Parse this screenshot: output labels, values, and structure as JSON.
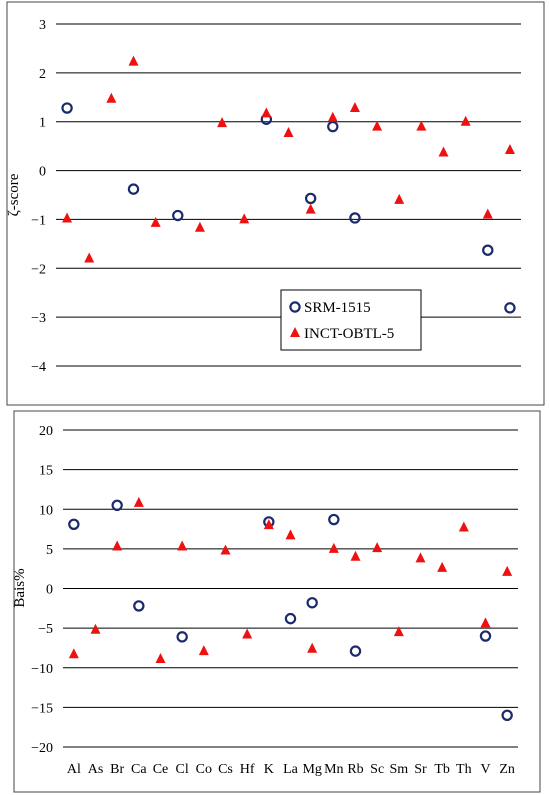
{
  "chart_data": [
    {
      "type": "scatter",
      "title": "",
      "xlabel": "",
      "ylabel": "ζ-score",
      "ylim": [
        -4,
        3
      ],
      "yticks": [
        3,
        2,
        1,
        0,
        -1,
        -2,
        -3,
        -4
      ],
      "grid": true,
      "legend": "bottom-right",
      "categories": [
        "Al",
        "As",
        "Br",
        "Ca",
        "Ce",
        "Cl",
        "Co",
        "Cs",
        "Hf",
        "K",
        "La",
        "Mg",
        "Mn",
        "Rb",
        "Sc",
        "Sm",
        "Sr",
        "Tb",
        "Th",
        "V",
        "Zn"
      ],
      "series": [
        {
          "name": "SRM-1515",
          "marker": "circle",
          "color": "#1a2a6c",
          "values": [
            1.28,
            null,
            null,
            -0.38,
            null,
            -0.92,
            null,
            null,
            null,
            1.05,
            null,
            -0.57,
            0.9,
            -0.97,
            null,
            null,
            null,
            null,
            null,
            -1.63,
            -2.81
          ]
        },
        {
          "name": "INCT-OBTL-5",
          "marker": "triangle",
          "color": "#ee1111",
          "values": [
            -0.98,
            -1.8,
            1.47,
            2.23,
            -1.07,
            null,
            -1.17,
            0.97,
            -1.0,
            1.17,
            0.77,
            -0.8,
            1.08,
            1.28,
            0.9,
            -0.6,
            0.9,
            0.37,
            1.0,
            -0.9,
            0.42
          ]
        }
      ]
    },
    {
      "type": "scatter",
      "title": "",
      "xlabel": "",
      "ylabel": "Bais%",
      "ylim": [
        -20,
        20
      ],
      "yticks": [
        20,
        15,
        10,
        5,
        0,
        -5,
        -10,
        -15,
        -20
      ],
      "grid": true,
      "categories": [
        "Al",
        "As",
        "Br",
        "Ca",
        "Ce",
        "Cl",
        "Co",
        "Cs",
        "Hf",
        "K",
        "La",
        "Mg",
        "Mn",
        "Rb",
        "Sc",
        "Sm",
        "Sr",
        "Tb",
        "Th",
        "V",
        "Zn"
      ],
      "series": [
        {
          "name": "SRM-1515",
          "marker": "circle",
          "color": "#1a2a6c",
          "values": [
            8.1,
            null,
            10.5,
            -2.2,
            null,
            -6.1,
            null,
            null,
            null,
            8.4,
            -3.8,
            -1.8,
            8.7,
            -7.9,
            null,
            null,
            null,
            null,
            null,
            -6.0,
            -16.0
          ]
        },
        {
          "name": "INCT-OBTL-5",
          "marker": "triangle",
          "color": "#ee1111",
          "values": [
            -8.3,
            -5.2,
            5.3,
            10.8,
            -8.9,
            5.3,
            -7.9,
            4.8,
            -5.8,
            8.0,
            6.7,
            -7.6,
            5.0,
            4.0,
            5.1,
            -5.5,
            3.8,
            2.6,
            7.7,
            -4.4,
            2.1
          ]
        }
      ]
    }
  ]
}
